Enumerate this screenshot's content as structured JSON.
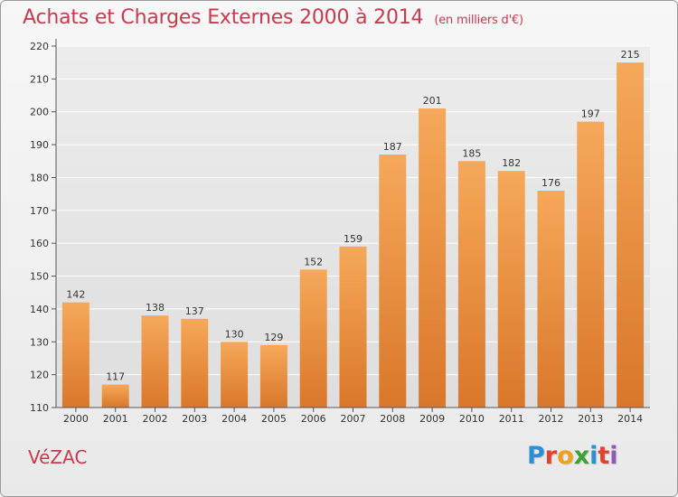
{
  "title": "Achats et Charges Externes 2000 à 2014",
  "unit": "(en milliers d'€)",
  "place": "VéZAC",
  "logo": {
    "letters": [
      {
        "char": "P",
        "color": "#2b8fd6"
      },
      {
        "char": "r",
        "color": "#e2412f"
      },
      {
        "char": "o",
        "color": "#f0a01e"
      },
      {
        "char": "x",
        "color": "#3aa335"
      },
      {
        "char": "i",
        "color": "#2b8fd6"
      },
      {
        "char": "t",
        "color": "#e2412f"
      },
      {
        "char": "i",
        "color": "#8f5bb5"
      }
    ]
  },
  "chart_data": {
    "type": "bar",
    "categories": [
      "2000",
      "2001",
      "2002",
      "2003",
      "2004",
      "2005",
      "2006",
      "2007",
      "2008",
      "2009",
      "2010",
      "2011",
      "2012",
      "2013",
      "2014"
    ],
    "values": [
      142,
      117,
      138,
      137,
      130,
      129,
      152,
      159,
      187,
      201,
      185,
      182,
      176,
      197,
      215
    ],
    "ylim": [
      110,
      220
    ],
    "yticks": [
      110,
      120,
      130,
      140,
      150,
      160,
      170,
      180,
      190,
      200,
      210,
      220
    ],
    "grid": true,
    "bar_color_top": "#f6a85a",
    "bar_color_bottom": "#d9772a",
    "title_color": "#c83a4e"
  }
}
